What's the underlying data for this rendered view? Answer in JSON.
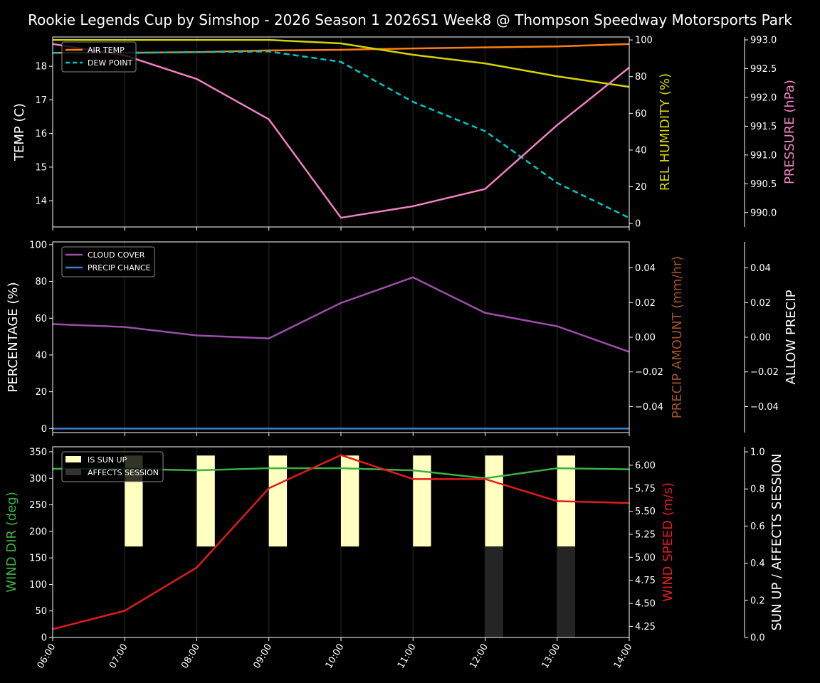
{
  "title": "Rookie Legends Cup by Simshop - 2026 Season 1 2026S1 Week8 @ Thompson Speedway Motorsports Park",
  "chart_data": [
    {
      "type": "line",
      "panel": "temperature",
      "x": [
        "06:00",
        "07:00",
        "08:00",
        "09:00",
        "10:00",
        "11:00",
        "12:00",
        "13:00",
        "14:00"
      ],
      "axes": {
        "left": {
          "label": "TEMP (C)",
          "color": "#ffffff",
          "ylim": [
            13.22,
            18.87
          ],
          "ticks": [
            14,
            15,
            16,
            17,
            18
          ],
          "tick_labels": [
            "14",
            "15",
            "16",
            "17",
            "18"
          ]
        },
        "right": {
          "label": "REL HUMIDITY (%)",
          "color": "#d4d400",
          "ylim": [
            -1.9,
            101.6
          ],
          "ticks": [
            0,
            20,
            40,
            60,
            80,
            100
          ],
          "tick_labels": [
            "0",
            "20",
            "40",
            "60",
            "80",
            "100"
          ]
        },
        "outer": {
          "label": "PRESSURE (hPa)",
          "color": "#f080c0",
          "ylim": [
            989.75,
            993.05
          ],
          "ticks": [
            990,
            990.5,
            991,
            991.5,
            992,
            992.5,
            993
          ],
          "tick_labels": [
            "990.0",
            "990.5",
            "991.0",
            "991.5",
            "992.0",
            "992.5",
            "993.0"
          ]
        }
      },
      "series": [
        {
          "name": "AIR TEMP",
          "axis": "left",
          "color": "#ff7f0e",
          "dash": false,
          "values": [
            18.4,
            18.4,
            18.42,
            18.47,
            18.49,
            18.53,
            18.56,
            18.59,
            18.66
          ]
        },
        {
          "name": "DEW POINT",
          "axis": "left",
          "color": "#00c8c8",
          "dash": true,
          "values": [
            18.4,
            18.4,
            18.42,
            18.44,
            18.13,
            16.94,
            16.07,
            14.53,
            13.49
          ]
        },
        {
          "axis": "right",
          "color": "#d4d400",
          "dash": false,
          "values": [
            100,
            100,
            100,
            100,
            98.1,
            91.9,
            87.2,
            80.2,
            74.4
          ]
        },
        {
          "axis": "outer",
          "color": "#f080c0",
          "dash": false,
          "values": [
            992.93,
            992.73,
            992.32,
            991.62,
            989.91,
            990.11,
            990.41,
            991.52,
            992.52
          ]
        }
      ],
      "legend": {
        "placement": "upper-left",
        "entries": [
          "AIR TEMP",
          "DEW POINT"
        ]
      }
    },
    {
      "type": "line",
      "panel": "precipitation",
      "x": [
        "06:00",
        "07:00",
        "08:00",
        "09:00",
        "10:00",
        "11:00",
        "12:00",
        "13:00",
        "14:00"
      ],
      "axes": {
        "left": {
          "label": "PERCENTAGE (%)",
          "color": "#ffffff",
          "ylim": [
            -2.2,
            101.5
          ],
          "ticks": [
            0,
            20,
            40,
            60,
            80,
            100
          ],
          "tick_labels": [
            "0",
            "20",
            "40",
            "60",
            "80",
            "100"
          ]
        },
        "right": {
          "label": "PRECIP AMOUNT (mm/hr)",
          "color": "#a0522d",
          "ylim": [
            -0.055,
            0.055
          ],
          "ticks": [
            -0.04,
            -0.02,
            0,
            0.02,
            0.04
          ],
          "tick_labels": [
            "−0.04",
            "−0.02",
            "0.00",
            "0.02",
            "0.04"
          ]
        },
        "outer": {
          "label": "ALLOW PRECIP",
          "color": "#ffffff",
          "ylim": [
            -0.055,
            0.055
          ],
          "ticks": [
            -0.04,
            -0.02,
            0,
            0.02,
            0.04
          ],
          "tick_labels": [
            "−0.04",
            "−0.02",
            "0.00",
            "0.02",
            "0.04"
          ]
        }
      },
      "series": [
        {
          "name": "CLOUD COVER",
          "axis": "left",
          "color": "#9b4fa6",
          "dash": false,
          "values": [
            56.8,
            55.2,
            50.6,
            49.0,
            68.3,
            82.2,
            62.9,
            55.6,
            41.7
          ]
        },
        {
          "name": "PRECIP CHANCE",
          "axis": "left",
          "color": "#3a80d0",
          "dash": false,
          "values": [
            0,
            0,
            0,
            0,
            0,
            0,
            0,
            0,
            0
          ]
        }
      ],
      "legend": {
        "placement": "upper-left",
        "entries": [
          "CLOUD COVER",
          "PRECIP CHANCE"
        ]
      }
    },
    {
      "type": "line",
      "panel": "wind",
      "x": [
        "06:00",
        "07:00",
        "08:00",
        "09:00",
        "10:00",
        "11:00",
        "12:00",
        "13:00",
        "14:00"
      ],
      "axes": {
        "left": {
          "label": "WIND DIR (deg)",
          "color": "#3cb043",
          "ylim": [
            0,
            359.4
          ],
          "ticks": [
            0,
            50,
            100,
            150,
            200,
            250,
            300,
            350
          ],
          "tick_labels": [
            "0",
            "50",
            "100",
            "150",
            "200",
            "250",
            "300",
            "350"
          ]
        },
        "right": {
          "label": "WIND SPEED (m/s)",
          "color": "#e31a1c",
          "ylim": [
            4.13,
            6.2
          ],
          "ticks": [
            4.25,
            4.5,
            4.75,
            5,
            5.25,
            5.5,
            5.75,
            6
          ],
          "tick_labels": [
            "4.25",
            "4.50",
            "4.75",
            "5.00",
            "5.25",
            "5.50",
            "5.75",
            "6.00"
          ]
        },
        "outer": {
          "label": "SUN UP / AFFECTS SESSION",
          "color": "#ffffff",
          "ylim": [
            0,
            1.027
          ],
          "ticks": [
            0,
            0.2,
            0.4,
            0.6,
            0.8,
            1.0
          ],
          "tick_labels": [
            "0.0",
            "0.2",
            "0.4",
            "0.6",
            "0.8",
            "1.0"
          ]
        }
      },
      "series": [
        {
          "axis": "left",
          "color": "#3cb043",
          "dash": false,
          "values": [
            318,
            318,
            315,
            319,
            319,
            315,
            300,
            319,
            317
          ]
        },
        {
          "axis": "right",
          "color": "#e31a1c",
          "dash": false,
          "values": [
            4.22,
            4.42,
            4.89,
            5.75,
            6.11,
            5.85,
            5.85,
            5.61,
            5.59
          ]
        }
      ],
      "bars": [
        {
          "name": "IS SUN UP",
          "color": "#ffffc0",
          "values": [
            0,
            1,
            1,
            1,
            1,
            1,
            1,
            1,
            0
          ]
        },
        {
          "name": "AFFECTS SESSION",
          "color": "#252525",
          "values": [
            0,
            0,
            0,
            0,
            0,
            0,
            1,
            1,
            0
          ]
        }
      ],
      "legend": {
        "placement": "upper-left",
        "entries": [
          "IS SUN UP",
          "AFFECTS SESSION"
        ]
      }
    }
  ]
}
